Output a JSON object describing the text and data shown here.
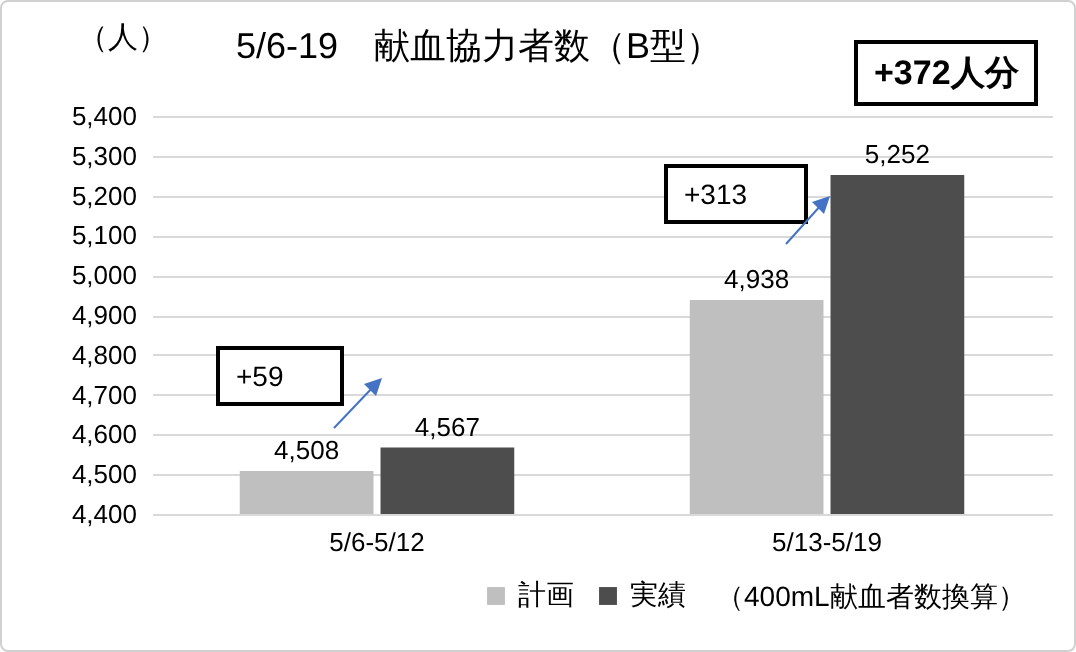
{
  "chart_data": {
    "type": "bar",
    "title": "5/6-19　献血協力者数（B型）",
    "ylabel": "（人）",
    "categories": [
      "5/6-5/12",
      "5/13-5/19"
    ],
    "series": [
      {
        "name": "計画",
        "color": "#bfbfbf",
        "values": [
          4508,
          4938
        ],
        "value_labels": [
          "4,508",
          "4,938"
        ]
      },
      {
        "name": "実績",
        "color": "#4d4d4d",
        "values": [
          4567,
          5252
        ],
        "value_labels": [
          "4,567",
          "5,252"
        ]
      }
    ],
    "ylim": [
      4400,
      5400
    ],
    "yticks": [
      {
        "value": 4400,
        "label": "4,400"
      },
      {
        "value": 4500,
        "label": "4,500"
      },
      {
        "value": 4600,
        "label": "4,600"
      },
      {
        "value": 4700,
        "label": "4,700"
      },
      {
        "value": 4800,
        "label": "4,800"
      },
      {
        "value": 4900,
        "label": "4,900"
      },
      {
        "value": 5000,
        "label": "5,000"
      },
      {
        "value": 5100,
        "label": "5,100"
      },
      {
        "value": 5200,
        "label": "5,200"
      },
      {
        "value": 5300,
        "label": "5,300"
      },
      {
        "value": 5400,
        "label": "5,400"
      }
    ],
    "grid": "y",
    "legend": "bottom",
    "annotations": [
      "+59",
      "+313",
      "+372人分",
      "（400mL献血者数換算）"
    ]
  }
}
